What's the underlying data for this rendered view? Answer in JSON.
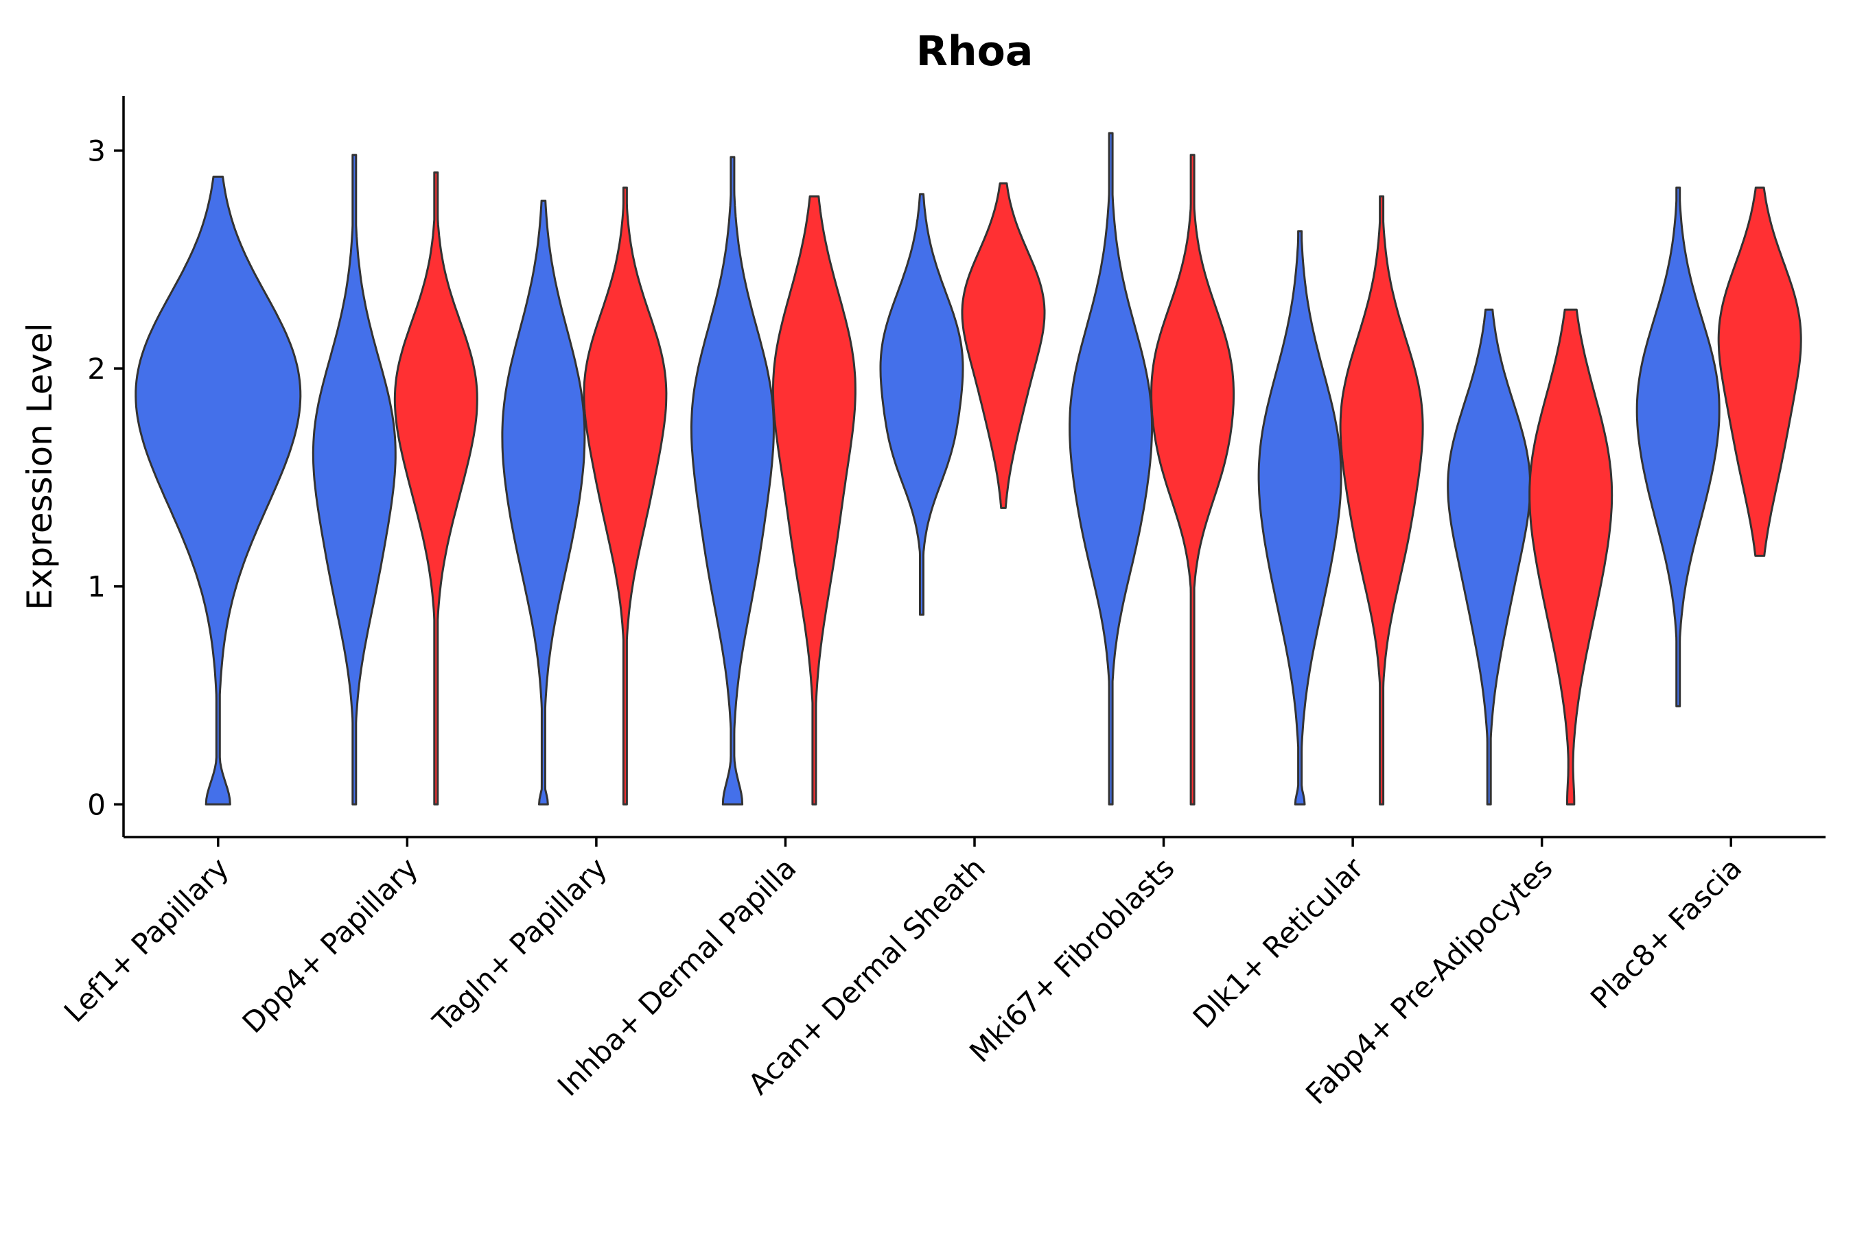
{
  "chart_data": {
    "type": "violin",
    "title": "Rhoa",
    "xlabel": "",
    "ylabel": "Expression Level",
    "ylim": [
      -0.15,
      3.25
    ],
    "yticks": [
      0,
      1,
      2,
      3
    ],
    "legend": "none",
    "grid": false,
    "colors": {
      "left": "#4470EA",
      "right": "#FF3033",
      "outline": "#333333"
    },
    "categories": [
      {
        "label": "Lef1+ Papillary",
        "violins": [
          {
            "side": "single",
            "color": "#4470EA",
            "min": 0.0,
            "max": 2.88,
            "modes": [
              [
                1.7,
                0.45,
                1.0
              ],
              [
                2.1,
                0.35,
                0.55
              ],
              [
                0.0,
                0.1,
                0.2
              ]
            ]
          }
        ]
      },
      {
        "label": "Dpp4+ Papillary",
        "violins": [
          {
            "side": "left",
            "color": "#4470EA",
            "min": 0.0,
            "max": 2.98,
            "modes": [
              [
                1.65,
                0.4,
                1.0
              ],
              [
                1.0,
                0.3,
                0.3
              ]
            ]
          },
          {
            "side": "right",
            "color": "#FF3033",
            "min": 0.0,
            "max": 2.9,
            "modes": [
              [
                1.95,
                0.3,
                1.0
              ],
              [
                1.5,
                0.3,
                0.5
              ]
            ]
          }
        ]
      },
      {
        "label": "Tagln+ Papillary",
        "violins": [
          {
            "side": "left",
            "color": "#4470EA",
            "min": 0.0,
            "max": 2.77,
            "modes": [
              [
                1.8,
                0.4,
                1.0
              ],
              [
                1.2,
                0.35,
                0.45
              ],
              [
                0.0,
                0.05,
                0.12
              ]
            ]
          },
          {
            "side": "right",
            "color": "#FF3033",
            "min": 0.0,
            "max": 2.83,
            "modes": [
              [
                1.95,
                0.32,
                1.0
              ],
              [
                1.4,
                0.3,
                0.45
              ]
            ]
          }
        ]
      },
      {
        "label": "Inhba+ Dermal Papilla",
        "violins": [
          {
            "side": "left",
            "color": "#4470EA",
            "min": 0.0,
            "max": 2.97,
            "modes": [
              [
                1.8,
                0.4,
                1.0
              ],
              [
                1.1,
                0.35,
                0.45
              ],
              [
                0.0,
                0.1,
                0.25
              ]
            ]
          },
          {
            "side": "right",
            "color": "#FF3033",
            "min": 0.0,
            "max": 2.79,
            "modes": [
              [
                1.95,
                0.4,
                1.0
              ],
              [
                1.2,
                0.35,
                0.4
              ]
            ]
          }
        ]
      },
      {
        "label": "Acan+ Dermal Sheath",
        "violins": [
          {
            "side": "left",
            "color": "#4470EA",
            "min": 0.87,
            "max": 2.8,
            "modes": [
              [
                2.05,
                0.3,
                1.0
              ],
              [
                1.6,
                0.2,
                0.4
              ]
            ]
          },
          {
            "side": "right",
            "color": "#FF3033",
            "min": 1.36,
            "max": 2.85,
            "modes": [
              [
                2.3,
                0.25,
                1.0
              ],
              [
                1.85,
                0.25,
                0.4
              ]
            ]
          }
        ]
      },
      {
        "label": "Mki67+ Fibroblasts",
        "violins": [
          {
            "side": "left",
            "color": "#4470EA",
            "min": 0.0,
            "max": 3.08,
            "modes": [
              [
                1.8,
                0.4,
                1.0
              ],
              [
                1.2,
                0.3,
                0.35
              ]
            ]
          },
          {
            "side": "right",
            "color": "#FF3033",
            "min": 0.0,
            "max": 2.98,
            "modes": [
              [
                2.0,
                0.3,
                1.0
              ],
              [
                1.55,
                0.25,
                0.55
              ]
            ]
          }
        ]
      },
      {
        "label": "Dlk1+ Reticular",
        "violins": [
          {
            "side": "left",
            "color": "#4470EA",
            "min": 0.0,
            "max": 2.63,
            "modes": [
              [
                1.6,
                0.4,
                1.0
              ],
              [
                1.0,
                0.35,
                0.4
              ],
              [
                0.0,
                0.05,
                0.12
              ]
            ]
          },
          {
            "side": "right",
            "color": "#FF3033",
            "min": 0.0,
            "max": 2.79,
            "modes": [
              [
                1.8,
                0.35,
                1.0
              ],
              [
                1.2,
                0.3,
                0.45
              ]
            ]
          }
        ]
      },
      {
        "label": "Fabp4+ Pre-Adipocytes",
        "violins": [
          {
            "side": "left",
            "color": "#4470EA",
            "min": 0.0,
            "max": 2.27,
            "modes": [
              [
                1.5,
                0.35,
                1.0
              ],
              [
                0.9,
                0.3,
                0.3
              ]
            ]
          },
          {
            "side": "right",
            "color": "#FF3033",
            "min": 0.0,
            "max": 2.27,
            "modes": [
              [
                1.5,
                0.4,
                1.0
              ],
              [
                0.9,
                0.35,
                0.35
              ],
              [
                0.0,
                0.1,
                0.08
              ]
            ]
          }
        ]
      },
      {
        "label": "Plac8+ Fascia",
        "violins": [
          {
            "side": "left",
            "color": "#4470EA",
            "min": 0.45,
            "max": 2.83,
            "modes": [
              [
                1.9,
                0.35,
                1.0
              ],
              [
                1.4,
                0.3,
                0.4
              ]
            ]
          },
          {
            "side": "right",
            "color": "#FF3033",
            "min": 1.14,
            "max": 2.83,
            "modes": [
              [
                2.2,
                0.3,
                1.0
              ],
              [
                1.65,
                0.3,
                0.5
              ]
            ]
          }
        ]
      }
    ]
  }
}
